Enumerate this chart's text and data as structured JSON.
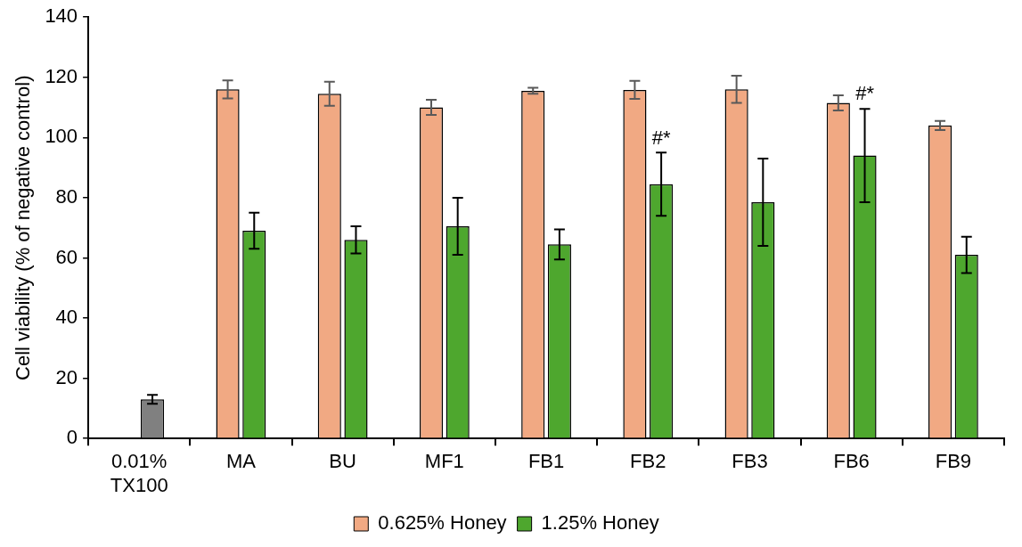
{
  "chart_data": {
    "type": "bar",
    "ylabel": "Cell viability (% of negative control)",
    "categories": [
      "0.01%\nTX100",
      "MA",
      "BU",
      "MF1",
      "FB1",
      "FB2",
      "FB3",
      "FB6",
      "FB9"
    ],
    "series": [
      {
        "name": "0.625% Honey",
        "color": "#f1a983",
        "values": [
          null,
          116,
          114.5,
          110,
          115.5,
          115.8,
          116,
          111.5,
          104
        ],
        "errors": [
          null,
          3,
          4,
          2.5,
          1,
          3,
          4.5,
          2.5,
          1.5
        ]
      },
      {
        "name": "1.25% Honey",
        "color": "#4ea72e",
        "colors": [
          "#808080",
          "#4ea72e",
          "#4ea72e",
          "#4ea72e",
          "#4ea72e",
          "#4ea72e",
          "#4ea72e",
          "#4ea72e",
          "#4ea72e"
        ],
        "values": [
          13,
          69,
          66,
          70.5,
          64.5,
          84.5,
          78.5,
          94,
          61
        ],
        "errors": [
          1.5,
          6,
          4.5,
          9.5,
          5,
          10.5,
          14.5,
          15.5,
          6
        ]
      }
    ],
    "ylim": [
      0,
      140
    ],
    "yticks": [
      0,
      20,
      40,
      60,
      80,
      100,
      120,
      140
    ],
    "grid": false,
    "legend": "bottom",
    "annotations": [
      {
        "text": "#*",
        "x": "FB2",
        "y": 95
      },
      {
        "text": "#*",
        "x": "FB6",
        "y": 110
      }
    ]
  }
}
